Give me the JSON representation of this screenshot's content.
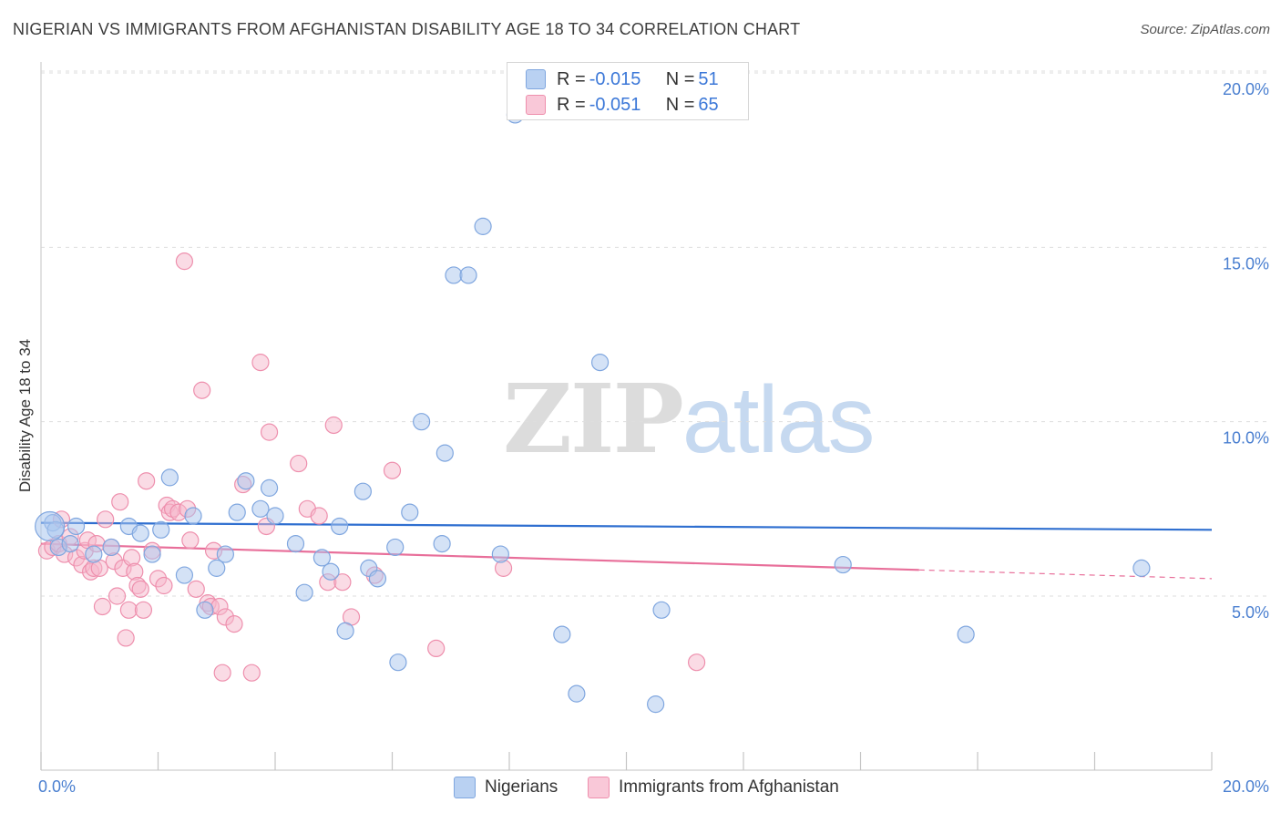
{
  "header": {
    "title": "NIGERIAN VS IMMIGRANTS FROM AFGHANISTAN DISABILITY AGE 18 TO 34 CORRELATION CHART",
    "source": "Source: ZipAtlas.com"
  },
  "legend": {
    "series1": {
      "r_label": "R = ",
      "r_value": "-0.015",
      "n_label": "N = ",
      "n_value": "51"
    },
    "series2": {
      "r_label": "R = ",
      "r_value": "-0.051",
      "n_label": "N = ",
      "n_value": "65"
    }
  },
  "bottom_legend": {
    "series1": "Nigerians",
    "series2": "Immigrants from Afghanistan"
  },
  "watermark": {
    "zip": "ZIP",
    "atlas": "atlas"
  },
  "colors": {
    "blue_fill": "#a9c6ee",
    "blue_stroke": "#7fa6df",
    "blue_line": "#2f6fd0",
    "pink_fill": "#f6b8cc",
    "pink_stroke": "#ee8fad",
    "pink_line": "#e86f9a",
    "axis_text": "#4a7fd0",
    "grid": "#dedede"
  },
  "chart_data": {
    "type": "scatter",
    "title": "NIGERIAN VS IMMIGRANTS FROM AFGHANISTAN DISABILITY AGE 18 TO 34 CORRELATION CHART",
    "xlabel": "",
    "ylabel": "Disability Age 18 to 34",
    "xlim": [
      0,
      20
    ],
    "ylim": [
      0,
      20.5
    ],
    "x_tick_labels": [
      "0.0%",
      "20.0%"
    ],
    "y_ticks": [
      5,
      10,
      15,
      20
    ],
    "y_tick_labels": [
      "5.0%",
      "10.0%",
      "15.0%",
      "20.0%"
    ],
    "grid": true,
    "legend_position": "top-center",
    "series": [
      {
        "name": "Nigerians",
        "color": "#a9c6ee",
        "r": -0.015,
        "n": 51,
        "trend": {
          "x0": 0.0,
          "y0": 7.1,
          "x1": 20.0,
          "y1": 6.9,
          "dashed_from": null
        },
        "points": [
          [
            0.2,
            7.1
          ],
          [
            0.25,
            6.9
          ],
          [
            0.3,
            6.4
          ],
          [
            0.5,
            6.5
          ],
          [
            0.6,
            7.0
          ],
          [
            0.9,
            6.2
          ],
          [
            1.2,
            6.4
          ],
          [
            1.5,
            7.0
          ],
          [
            1.7,
            6.8
          ],
          [
            1.9,
            6.2
          ],
          [
            2.05,
            6.9
          ],
          [
            2.2,
            8.4
          ],
          [
            2.45,
            5.6
          ],
          [
            2.6,
            7.3
          ],
          [
            2.8,
            4.6
          ],
          [
            3.0,
            5.8
          ],
          [
            3.15,
            6.2
          ],
          [
            3.35,
            7.4
          ],
          [
            3.5,
            8.3
          ],
          [
            3.75,
            7.5
          ],
          [
            3.9,
            8.1
          ],
          [
            4.0,
            7.3
          ],
          [
            4.35,
            6.5
          ],
          [
            4.5,
            5.1
          ],
          [
            4.8,
            6.1
          ],
          [
            4.95,
            5.7
          ],
          [
            5.1,
            7.0
          ],
          [
            5.2,
            4.0
          ],
          [
            5.5,
            8.0
          ],
          [
            5.6,
            5.8
          ],
          [
            5.75,
            5.5
          ],
          [
            6.05,
            6.4
          ],
          [
            6.1,
            3.1
          ],
          [
            6.3,
            7.4
          ],
          [
            6.5,
            10.0
          ],
          [
            6.85,
            6.5
          ],
          [
            6.9,
            9.1
          ],
          [
            7.05,
            14.2
          ],
          [
            7.3,
            14.2
          ],
          [
            7.55,
            15.6
          ],
          [
            7.85,
            6.2
          ],
          [
            8.1,
            18.8
          ],
          [
            8.9,
            3.9
          ],
          [
            9.15,
            2.2
          ],
          [
            9.55,
            11.7
          ],
          [
            10.5,
            1.9
          ],
          [
            10.6,
            4.6
          ],
          [
            13.7,
            5.9
          ],
          [
            15.8,
            3.9
          ],
          [
            18.8,
            5.8
          ],
          [
            0.15,
            7.0
          ]
        ]
      },
      {
        "name": "Immigrants from Afghanistan",
        "color": "#f6b8cc",
        "r": -0.051,
        "n": 65,
        "trend": {
          "x0": 0.0,
          "y0": 6.5,
          "x1": 20.0,
          "y1": 5.5,
          "dashed_from": 15.0
        },
        "points": [
          [
            0.1,
            6.3
          ],
          [
            0.2,
            6.4
          ],
          [
            0.3,
            6.5
          ],
          [
            0.35,
            7.2
          ],
          [
            0.4,
            6.2
          ],
          [
            0.5,
            6.7
          ],
          [
            0.6,
            6.1
          ],
          [
            0.7,
            5.9
          ],
          [
            0.75,
            6.3
          ],
          [
            0.8,
            6.6
          ],
          [
            0.85,
            5.7
          ],
          [
            0.9,
            5.8
          ],
          [
            0.95,
            6.5
          ],
          [
            1.0,
            5.8
          ],
          [
            1.05,
            4.7
          ],
          [
            1.1,
            7.2
          ],
          [
            1.2,
            6.4
          ],
          [
            1.25,
            6.0
          ],
          [
            1.3,
            5.0
          ],
          [
            1.35,
            7.7
          ],
          [
            1.4,
            5.8
          ],
          [
            1.45,
            3.8
          ],
          [
            1.5,
            4.6
          ],
          [
            1.55,
            6.1
          ],
          [
            1.6,
            5.7
          ],
          [
            1.65,
            5.3
          ],
          [
            1.7,
            5.2
          ],
          [
            1.75,
            4.6
          ],
          [
            1.8,
            8.3
          ],
          [
            1.9,
            6.3
          ],
          [
            2.0,
            5.5
          ],
          [
            2.1,
            5.3
          ],
          [
            2.15,
            7.6
          ],
          [
            2.2,
            7.4
          ],
          [
            2.25,
            7.5
          ],
          [
            2.35,
            7.4
          ],
          [
            2.45,
            14.6
          ],
          [
            2.5,
            7.5
          ],
          [
            2.55,
            6.6
          ],
          [
            2.65,
            5.2
          ],
          [
            2.75,
            10.9
          ],
          [
            2.85,
            4.8
          ],
          [
            2.9,
            4.7
          ],
          [
            2.95,
            6.3
          ],
          [
            3.05,
            4.7
          ],
          [
            3.1,
            2.8
          ],
          [
            3.15,
            4.4
          ],
          [
            3.3,
            4.2
          ],
          [
            3.45,
            8.2
          ],
          [
            3.6,
            2.8
          ],
          [
            3.75,
            11.7
          ],
          [
            3.85,
            7.0
          ],
          [
            3.9,
            9.7
          ],
          [
            4.4,
            8.8
          ],
          [
            4.55,
            7.5
          ],
          [
            4.75,
            7.3
          ],
          [
            4.9,
            5.4
          ],
          [
            5.0,
            9.9
          ],
          [
            5.15,
            5.4
          ],
          [
            5.3,
            4.4
          ],
          [
            5.7,
            5.6
          ],
          [
            6.0,
            8.6
          ],
          [
            6.75,
            3.5
          ],
          [
            7.9,
            5.8
          ],
          [
            11.2,
            3.1
          ]
        ]
      }
    ]
  }
}
